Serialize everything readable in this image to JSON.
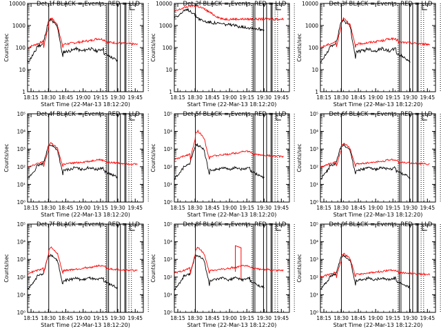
{
  "chart_data": [
    {
      "type": "line",
      "title": "Det 1f BLACK = Events, RED = LLD",
      "xlabel": "Start Time (22-Mar-13 18:12:20)",
      "ylabel": "Counts/sec",
      "yscale": "log",
      "ylim": [
        1,
        10000
      ],
      "ytick_labels": [
        "1",
        "10",
        "100",
        "1000",
        "10000"
      ],
      "xtick_labels": [
        "18:15",
        "18:30",
        "18:45",
        "19:00",
        "19:15",
        "19:30",
        "19:45"
      ],
      "lld_level": 1,
      "events_level": 1,
      "spike": null
    },
    {
      "type": "line",
      "title": "Det 2f BLACK = Events, RED = LLD",
      "xlabel": "Start Time (22-Mar-13 18:12:20)",
      "ylabel": "Counts/sec",
      "yscale": "log",
      "ylim": [
        1,
        10000
      ],
      "ytick_labels": [
        "1",
        "10",
        "100",
        "1000",
        "10000"
      ],
      "xtick_labels": [
        "18:15",
        "18:30",
        "18:45",
        "19:00",
        "19:15",
        "19:30",
        "19:45"
      ],
      "lld_level": 1.4,
      "events_level": 1.4,
      "spike": null,
      "flat": true
    },
    {
      "type": "line",
      "title": "Det 3f BLACK = Events, RED = LLD",
      "xlabel": "Start Time (22-Mar-13 18:12:20)",
      "ylabel": "Counts/sec",
      "yscale": "log",
      "ylim": [
        1,
        10000
      ],
      "ytick_labels": [
        "1",
        "10",
        "100",
        "1000",
        "10000"
      ],
      "xtick_labels": [
        "18:15",
        "18:30",
        "18:45",
        "19:00",
        "19:15",
        "19:30",
        "19:45"
      ],
      "lld_level": 1,
      "events_level": 1,
      "spike": null
    },
    {
      "type": "line",
      "title": "Det 4f BLACK = Events, RED = LLD",
      "xlabel": "Start Time (22-Mar-13 18:12:20)",
      "ylabel": "Counts/sec",
      "yscale": "log",
      "ylim": [
        1,
        100000
      ],
      "ytick_labels": [
        "10⁰",
        "10¹",
        "10²",
        "10³",
        "10⁴",
        "10⁵"
      ],
      "xtick_labels": [
        "18:15",
        "18:30",
        "18:45",
        "19:00",
        "19:15",
        "19:30",
        "19:45"
      ],
      "lld_level": 1,
      "events_level": 1,
      "spike": null
    },
    {
      "type": "line",
      "title": "Det 5f BLACK = Events, RED = LLD",
      "xlabel": "Start Time (22-Mar-13 18:12:20)",
      "ylabel": "Counts/sec",
      "yscale": "log",
      "ylim": [
        1,
        100000
      ],
      "ytick_labels": [
        "10⁰",
        "10¹",
        "10²",
        "10³",
        "10⁴",
        "10⁵"
      ],
      "xtick_labels": [
        "18:15",
        "18:30",
        "18:45",
        "19:00",
        "19:15",
        "19:30",
        "19:45"
      ],
      "lld_level": 1.2,
      "events_level": 1,
      "spike": null
    },
    {
      "type": "line",
      "title": "Det 6f BLACK = Events, RED = LLD",
      "xlabel": "Start Time (22-Mar-13 18:12:20)",
      "ylabel": "Counts/sec",
      "yscale": "log",
      "ylim": [
        1,
        100000
      ],
      "ytick_labels": [
        "10⁰",
        "10¹",
        "10²",
        "10³",
        "10⁴",
        "10⁵"
      ],
      "xtick_labels": [
        "18:15",
        "18:30",
        "18:45",
        "19:00",
        "19:15",
        "19:30",
        "19:45"
      ],
      "lld_level": 1,
      "events_level": 1,
      "spike": null
    },
    {
      "type": "line",
      "title": "Det 7f BLACK = Events, RED = LLD",
      "xlabel": "Start Time (22-Mar-13 18:12:20)",
      "ylabel": "Counts/sec",
      "yscale": "log",
      "ylim": [
        1,
        100000
      ],
      "ytick_labels": [
        "10⁰",
        "10¹",
        "10²",
        "10³",
        "10⁴",
        "10⁵"
      ],
      "xtick_labels": [
        "18:15",
        "18:30",
        "18:45",
        "19:00",
        "19:15",
        "19:30",
        "19:45"
      ],
      "lld_level": 1.1,
      "events_level": 1,
      "spike": null
    },
    {
      "type": "line",
      "title": "Det 8f BLACK = Events, RED = LLD",
      "xlabel": "Start Time (22-Mar-13 18:12:20)",
      "ylabel": "Counts/sec",
      "yscale": "log",
      "ylim": [
        1,
        100000
      ],
      "ytick_labels": [
        "10⁰",
        "10¹",
        "10²",
        "10³",
        "10⁴",
        "10⁵"
      ],
      "xtick_labels": [
        "18:15",
        "18:30",
        "18:45",
        "19:00",
        "19:15",
        "19:30",
        "19:45"
      ],
      "lld_level": 1.1,
      "events_level": 1,
      "spike": [
        19.05,
        19.12,
        6000
      ]
    },
    {
      "type": "line",
      "title": "Det 9f BLACK = Events, RED = LLD",
      "xlabel": "Start Time (22-Mar-13 18:12:20)",
      "ylabel": "Counts/sec",
      "yscale": "log",
      "ylim": [
        1,
        100000
      ],
      "ytick_labels": [
        "10⁰",
        "10¹",
        "10²",
        "10³",
        "10⁴",
        "10⁵"
      ],
      "xtick_labels": [
        "18:15",
        "18:30",
        "18:45",
        "19:00",
        "19:15",
        "19:30",
        "19:45"
      ],
      "lld_level": 1,
      "events_level": 1,
      "spike": null
    }
  ],
  "solid_lines_min": [
    30.3,
    80.5,
    82,
    89.5,
    92.2,
    96,
    97
  ],
  "dotted_lines_min": [
    79.5,
    99.5,
    101.7,
    116.3
  ],
  "bracket_min": 100.5,
  "colors": {
    "events": "#000000",
    "lld": "#ff0000",
    "axis": "#000000"
  }
}
